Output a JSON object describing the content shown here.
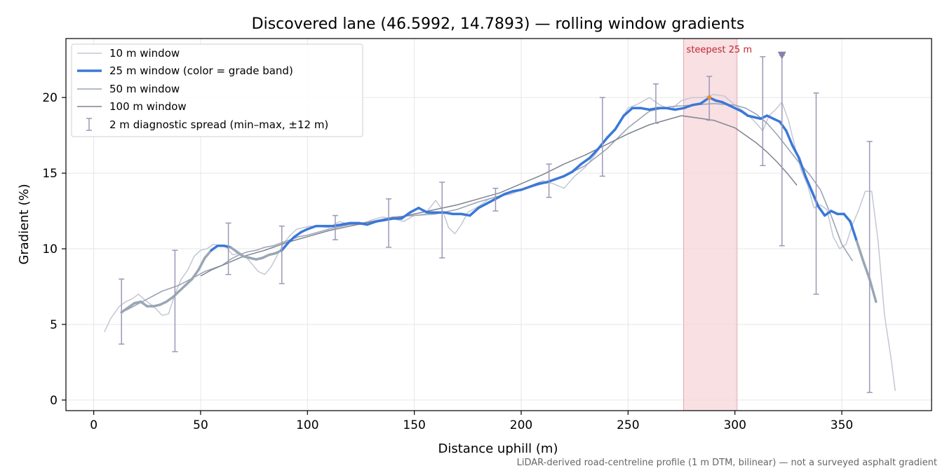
{
  "chart_data": {
    "type": "line",
    "title": "Discovered lane (46.5992, 14.7893) — rolling window gradients",
    "xlabel": "Distance uphill (m)",
    "ylabel": "Gradient (%)",
    "xlim": [
      -13,
      392
    ],
    "ylim": [
      -0.7,
      23.9
    ],
    "xticks": [
      0,
      50,
      100,
      150,
      200,
      250,
      300,
      350
    ],
    "yticks": [
      0,
      5,
      10,
      15,
      20
    ],
    "grid": true,
    "legend_position": "top-left",
    "footnote": "LiDAR-derived road-centreline profile (1 m DTM, bilinear) — not a surveyed asphalt gradient",
    "colors": {
      "w10": "#c3c7d3",
      "w25": "#3a78d8",
      "w25_low": "#9aa6b4",
      "w50": "#9ba4b6",
      "w100": "#7e8392",
      "spread": "#9b98b8",
      "highlight_fill": "#f5d5d9",
      "highlight_edge": "#e3a9b1",
      "highlight_text": "#c0282f",
      "marker": "#8a80aa",
      "peak_dot": "#f08c1e"
    },
    "highlight": {
      "x0": 276,
      "x1": 301,
      "label": "steepest 25 m"
    },
    "peak_point": {
      "x": 288,
      "y": 20.0
    },
    "marker_point": {
      "x": 322,
      "y": 22.8
    },
    "series": [
      {
        "name": "10 m window",
        "x": [
          5,
          8,
          12,
          15,
          18,
          21,
          24,
          28,
          32,
          35,
          38,
          41,
          44,
          47,
          50,
          53,
          56,
          59,
          62,
          65,
          68,
          71,
          74,
          77,
          80,
          83,
          86,
          89,
          92,
          95,
          98,
          101,
          105,
          110,
          115,
          120,
          125,
          130,
          135,
          140,
          145,
          150,
          155,
          160,
          163,
          166,
          169,
          172,
          175,
          180,
          185,
          190,
          195,
          200,
          205,
          210,
          215,
          220,
          225,
          230,
          235,
          240,
          245,
          250,
          255,
          260,
          265,
          270,
          275,
          280,
          285,
          290,
          295,
          300,
          305,
          310,
          313,
          316,
          319,
          322,
          325,
          328,
          331,
          334,
          337,
          340,
          343,
          346,
          349,
          352,
          355,
          358,
          361,
          364,
          367,
          370,
          373,
          375
        ],
        "y": [
          4.5,
          5.4,
          6.2,
          6.5,
          6.7,
          7.0,
          6.6,
          6.2,
          5.6,
          5.7,
          7.0,
          8.0,
          8.6,
          9.5,
          9.9,
          10.0,
          10.3,
          10.2,
          10.1,
          9.6,
          9.7,
          9.5,
          9.0,
          8.5,
          8.3,
          8.8,
          9.6,
          10.4,
          10.9,
          11.3,
          11.4,
          11.5,
          11.5,
          11.4,
          11.8,
          11.6,
          11.6,
          11.9,
          12.1,
          12.0,
          11.8,
          12.2,
          12.3,
          13.2,
          12.6,
          11.4,
          11.0,
          11.6,
          12.4,
          12.8,
          13.3,
          13.5,
          13.6,
          13.9,
          14.2,
          14.5,
          14.3,
          14.0,
          14.8,
          15.4,
          16.3,
          17.4,
          18.1,
          19.3,
          19.6,
          20.0,
          19.5,
          19.2,
          19.8,
          20.0,
          20.0,
          20.2,
          20.1,
          19.5,
          19.0,
          18.3,
          17.8,
          18.8,
          19.2,
          19.7,
          18.5,
          16.8,
          15.2,
          14.2,
          12.7,
          12.9,
          12.6,
          10.8,
          10.0,
          10.3,
          11.6,
          12.6,
          13.8,
          13.8,
          10.5,
          5.6,
          2.8,
          0.6
        ]
      },
      {
        "name": "25 m window (color = grade band)",
        "x": [
          13,
          16,
          19,
          22,
          25,
          28,
          31,
          34,
          37,
          40,
          43,
          46,
          49,
          52,
          55,
          58,
          61,
          64,
          67,
          70,
          73,
          76,
          79,
          82,
          85,
          88,
          91,
          94,
          97,
          100,
          104,
          108,
          112,
          116,
          120,
          124,
          128,
          132,
          136,
          140,
          144,
          148,
          152,
          156,
          160,
          164,
          168,
          172,
          176,
          180,
          184,
          188,
          192,
          196,
          200,
          204,
          208,
          212,
          216,
          220,
          224,
          228,
          232,
          236,
          240,
          244,
          248,
          252,
          256,
          260,
          264,
          268,
          272,
          276,
          280,
          284,
          288,
          291,
          294,
          297,
          300,
          303,
          306,
          309,
          312,
          315,
          318,
          321,
          324,
          327,
          330,
          333,
          336,
          339,
          342,
          345,
          348,
          351,
          354,
          357,
          360,
          363,
          366
        ],
        "y": [
          5.8,
          6.1,
          6.4,
          6.5,
          6.2,
          6.2,
          6.3,
          6.5,
          6.8,
          7.2,
          7.6,
          8.0,
          8.6,
          9.4,
          9.9,
          10.2,
          10.2,
          10.1,
          9.8,
          9.5,
          9.4,
          9.3,
          9.4,
          9.6,
          9.7,
          9.9,
          10.4,
          10.8,
          11.1,
          11.3,
          11.5,
          11.5,
          11.5,
          11.6,
          11.7,
          11.7,
          11.6,
          11.8,
          11.9,
          12.0,
          12.0,
          12.4,
          12.7,
          12.4,
          12.4,
          12.4,
          12.3,
          12.3,
          12.2,
          12.7,
          13.0,
          13.3,
          13.6,
          13.8,
          13.9,
          14.1,
          14.3,
          14.4,
          14.6,
          14.8,
          15.1,
          15.6,
          16.0,
          16.6,
          17.3,
          17.9,
          18.8,
          19.3,
          19.3,
          19.2,
          19.3,
          19.3,
          19.2,
          19.3,
          19.5,
          19.6,
          20.0,
          19.8,
          19.7,
          19.5,
          19.3,
          19.1,
          18.8,
          18.7,
          18.6,
          18.8,
          18.6,
          18.4,
          17.8,
          16.8,
          16.0,
          14.8,
          13.8,
          12.8,
          12.2,
          12.5,
          12.3,
          12.3,
          11.8,
          10.5,
          9.2,
          8.0,
          6.5
        ]
      },
      {
        "name": "50 m window",
        "x": [
          13,
          16,
          20,
          24,
          28,
          32,
          36,
          40,
          44,
          48,
          52,
          56,
          60,
          64,
          68,
          72,
          76,
          80,
          84,
          88,
          92,
          96,
          100,
          110,
          120,
          130,
          140,
          150,
          160,
          170,
          180,
          190,
          200,
          210,
          220,
          230,
          240,
          250,
          260,
          270,
          280,
          290,
          300,
          305,
          310,
          315,
          320,
          325,
          330,
          335,
          340,
          345,
          350,
          355
        ],
        "y": [
          5.8,
          6.0,
          6.3,
          6.6,
          6.9,
          7.2,
          7.4,
          7.6,
          7.9,
          8.2,
          8.5,
          8.7,
          8.9,
          9.3,
          9.6,
          9.8,
          9.9,
          10.1,
          10.2,
          10.4,
          10.6,
          10.8,
          10.9,
          11.3,
          11.6,
          11.8,
          12.1,
          12.2,
          12.3,
          12.6,
          13.1,
          13.5,
          13.9,
          14.3,
          14.8,
          15.5,
          16.6,
          18.0,
          19.1,
          19.4,
          19.5,
          19.6,
          19.5,
          19.3,
          18.9,
          18.3,
          17.5,
          16.6,
          15.7,
          14.9,
          13.9,
          12.2,
          10.3,
          9.2
        ]
      },
      {
        "name": "100 m window",
        "x": [
          50,
          55,
          60,
          65,
          70,
          80,
          90,
          100,
          110,
          120,
          130,
          140,
          150,
          160,
          170,
          180,
          190,
          200,
          210,
          220,
          230,
          240,
          250,
          260,
          270,
          275,
          280,
          290,
          300,
          305,
          310,
          315,
          320,
          325,
          329
        ],
        "y": [
          8.2,
          8.6,
          8.9,
          9.2,
          9.5,
          9.9,
          10.4,
          10.8,
          11.2,
          11.5,
          11.8,
          12.0,
          12.3,
          12.6,
          12.9,
          13.3,
          13.7,
          14.3,
          14.9,
          15.6,
          16.2,
          16.9,
          17.6,
          18.2,
          18.6,
          18.8,
          18.7,
          18.5,
          18.0,
          17.5,
          17.0,
          16.4,
          15.7,
          14.9,
          14.2
        ]
      }
    ],
    "spread": {
      "name": "2 m diagnostic spread (min–max, ±12 m)",
      "x": [
        13,
        38,
        63,
        88,
        113,
        138,
        163,
        188,
        213,
        238,
        263,
        288,
        313,
        322,
        338,
        363
      ],
      "low": [
        3.7,
        3.2,
        8.3,
        7.7,
        10.6,
        10.1,
        9.4,
        12.5,
        13.4,
        14.8,
        18.3,
        18.5,
        15.5,
        10.2,
        7.0,
        0.5
      ],
      "high": [
        8.0,
        9.9,
        11.7,
        11.5,
        12.2,
        13.3,
        14.4,
        14.0,
        15.6,
        20.0,
        20.9,
        21.4,
        22.7,
        22.8,
        20.3,
        17.1
      ]
    }
  }
}
